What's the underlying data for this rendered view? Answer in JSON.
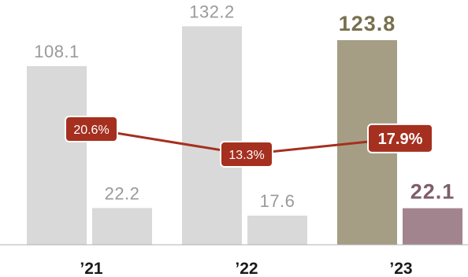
{
  "chart_data": {
    "type": "bar",
    "categories": [
      "’21",
      "’22",
      "’23"
    ],
    "series": [
      {
        "values": [
          108.1,
          132.2,
          123.8
        ],
        "value_labels": [
          "108.1",
          "132.2",
          "123.8"
        ]
      },
      {
        "values": [
          22.2,
          17.6,
          22.1
        ],
        "value_labels": [
          "22.2",
          "17.6",
          "22.1"
        ]
      }
    ],
    "line_series": {
      "values": [
        20.6,
        13.3,
        17.9
      ],
      "labels": [
        "20.6%",
        "13.3%",
        "17.9%"
      ]
    },
    "highlight_index": 2,
    "colors": {
      "bar_default": "#d9d9d9",
      "bar1_highlight": "#a59e84",
      "bar2_highlight": "#a2848f",
      "line": "#a5301f",
      "label_default": "#9a9a9a",
      "label1_highlight": "#77704e",
      "label2_highlight": "#7e5e69",
      "tick": "#1a1a1a"
    },
    "grid": false,
    "legend": "none"
  }
}
